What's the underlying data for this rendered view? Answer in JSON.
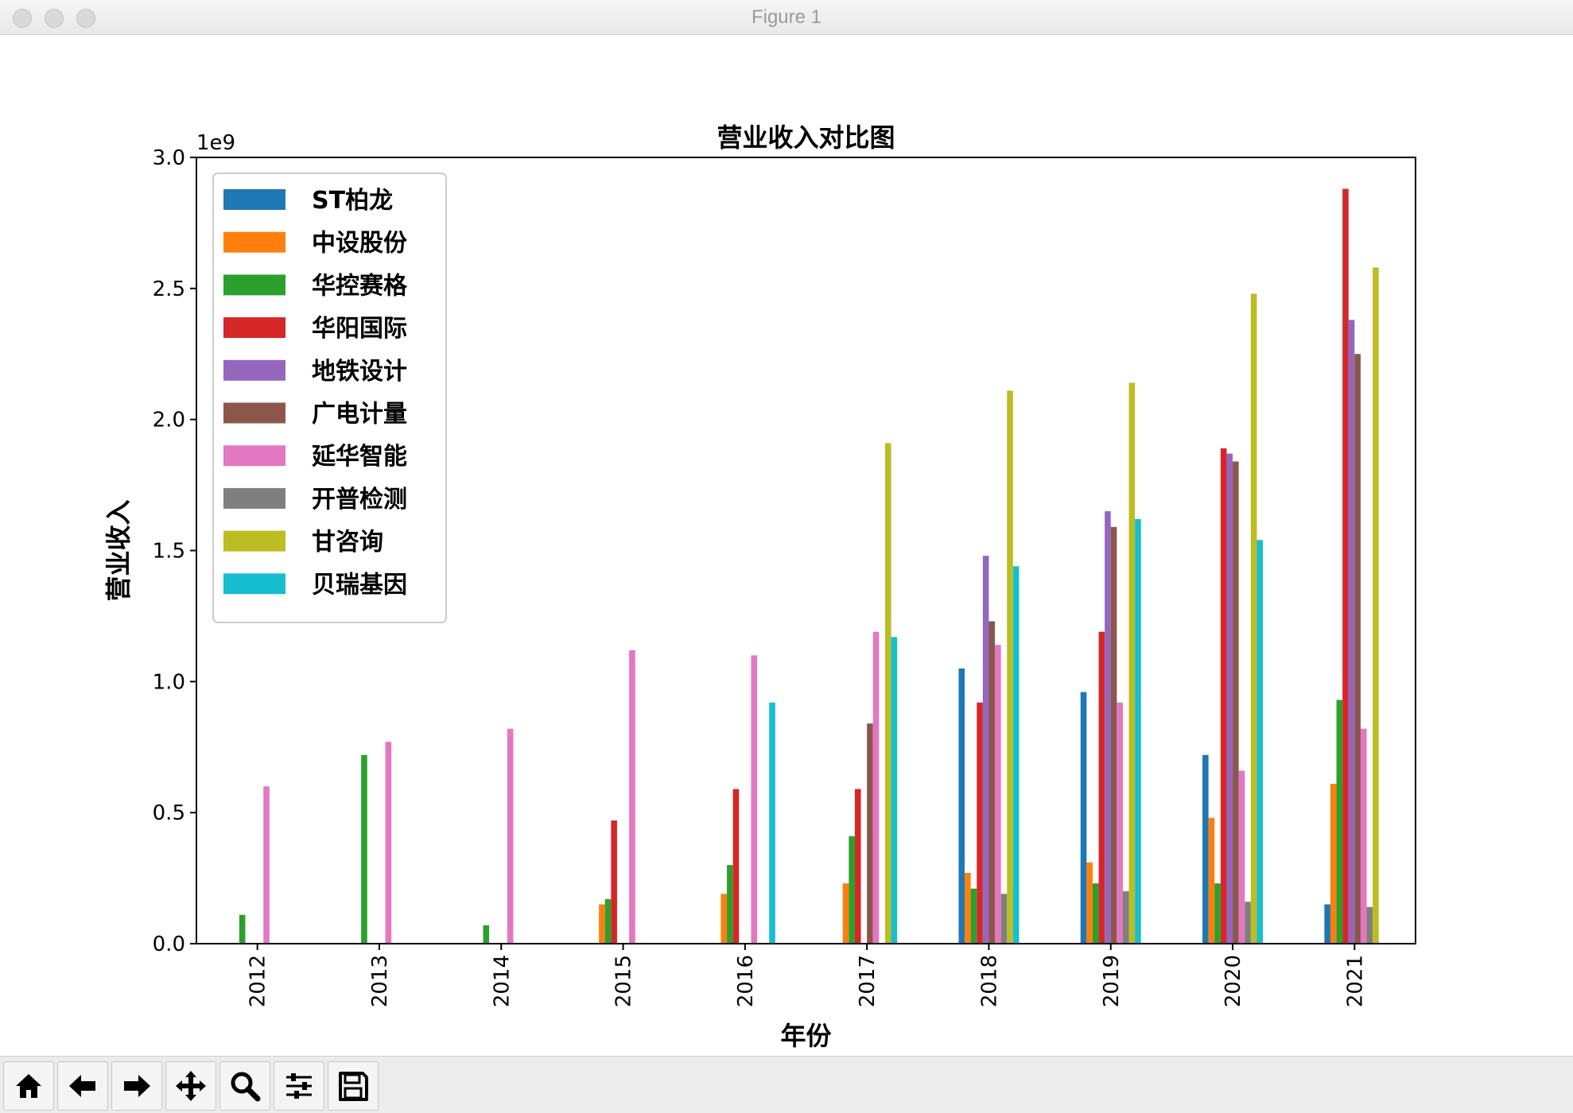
{
  "window": {
    "title": "Figure 1"
  },
  "toolbar": {
    "buttons": [
      {
        "icon": "home-icon"
      },
      {
        "icon": "back-arrow-icon"
      },
      {
        "icon": "forward-arrow-icon"
      },
      {
        "icon": "pan-icon"
      },
      {
        "icon": "zoom-icon"
      },
      {
        "icon": "configure-subplots-icon"
      },
      {
        "icon": "save-icon"
      }
    ]
  },
  "chart_data": {
    "type": "bar",
    "title": "营业收入对比图",
    "xlabel": "年份",
    "ylabel": "营业收入",
    "offset_text": "1e9",
    "ylim": [
      0,
      3.0
    ],
    "yticks": [
      "0.0",
      "0.5",
      "1.0",
      "1.5",
      "2.0",
      "2.5",
      "3.0"
    ],
    "legend_position": "upper-left",
    "grid": false,
    "categories": [
      "2012",
      "2013",
      "2014",
      "2015",
      "2016",
      "2017",
      "2018",
      "2019",
      "2020",
      "2021"
    ],
    "series": [
      {
        "name": "ST柏龙",
        "color": "#1f77b4",
        "values": [
          0,
          0,
          0,
          0,
          0,
          0,
          1.05,
          0.96,
          0.72,
          0.15
        ]
      },
      {
        "name": "中设股份",
        "color": "#ff7f0e",
        "values": [
          0,
          0,
          0,
          0.15,
          0.19,
          0.23,
          0.27,
          0.31,
          0.48,
          0.61
        ]
      },
      {
        "name": "华控赛格",
        "color": "#2ca02c",
        "values": [
          0.11,
          0.72,
          0.07,
          0.17,
          0.3,
          0.41,
          0.21,
          0.23,
          0.23,
          0.93
        ]
      },
      {
        "name": "华阳国际",
        "color": "#d62728",
        "values": [
          0,
          0,
          0,
          0.47,
          0.59,
          0.59,
          0.92,
          1.19,
          1.89,
          2.88
        ]
      },
      {
        "name": "地铁设计",
        "color": "#9467bd",
        "values": [
          0,
          0,
          0,
          0,
          0,
          0,
          1.48,
          1.65,
          1.87,
          2.38
        ]
      },
      {
        "name": "广电计量",
        "color": "#8c564b",
        "values": [
          0,
          0,
          0,
          0,
          0,
          0.84,
          1.23,
          1.59,
          1.84,
          2.25
        ]
      },
      {
        "name": "延华智能",
        "color": "#e377c2",
        "values": [
          0.6,
          0.77,
          0.82,
          1.12,
          1.1,
          1.19,
          1.14,
          0.92,
          0.66,
          0.82
        ]
      },
      {
        "name": "开普检测",
        "color": "#7f7f7f",
        "values": [
          0,
          0,
          0,
          0,
          0,
          0,
          0.19,
          0.2,
          0.16,
          0.14
        ]
      },
      {
        "name": "甘咨询",
        "color": "#bcbd22",
        "values": [
          0,
          0,
          0,
          0,
          0,
          1.91,
          2.11,
          2.14,
          2.48,
          2.58
        ]
      },
      {
        "name": "贝瑞基因",
        "color": "#17becf",
        "values": [
          0,
          0,
          0,
          0,
          0.92,
          1.17,
          1.44,
          1.62,
          1.54,
          0
        ]
      }
    ]
  }
}
